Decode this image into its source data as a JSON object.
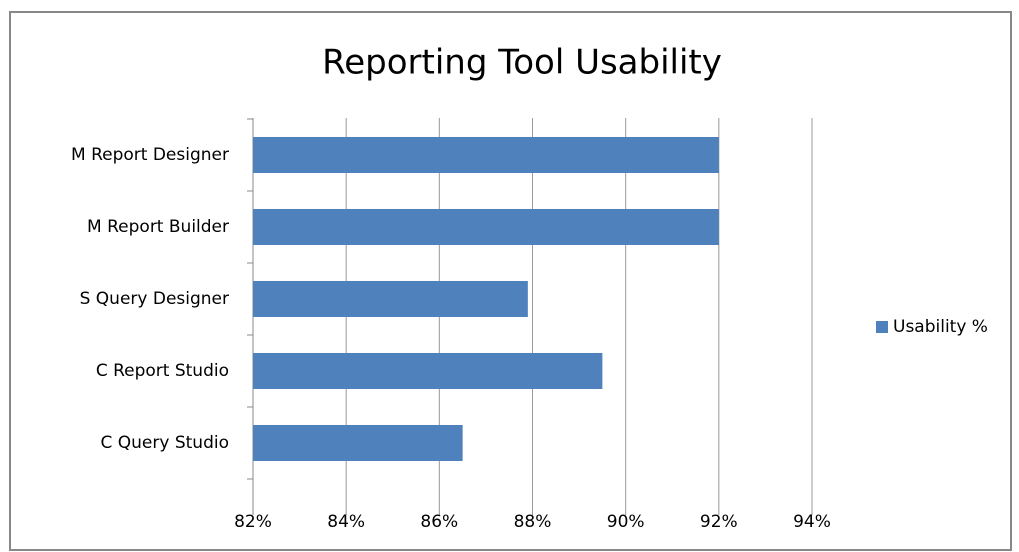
{
  "chart_data": {
    "type": "bar",
    "orientation": "horizontal",
    "title": "Reporting Tool Usability",
    "categories": [
      "M Report Designer",
      "M Report Builder",
      "S Query Designer",
      "C Report Studio",
      "C Query Studio"
    ],
    "series": [
      {
        "name": "Usability %",
        "color": "#4f81bd",
        "values": [
          92,
          92,
          87.9,
          89.5,
          86.5
        ]
      }
    ],
    "xlim": [
      82,
      94
    ],
    "xticks": [
      {
        "value": 82,
        "label": "82%"
      },
      {
        "value": 84,
        "label": "84%"
      },
      {
        "value": 86,
        "label": "86%"
      },
      {
        "value": 88,
        "label": "88%"
      },
      {
        "value": 90,
        "label": "90%"
      },
      {
        "value": 92,
        "label": "92%"
      },
      {
        "value": 94,
        "label": "94%"
      }
    ],
    "grid": true,
    "legend": "right"
  }
}
